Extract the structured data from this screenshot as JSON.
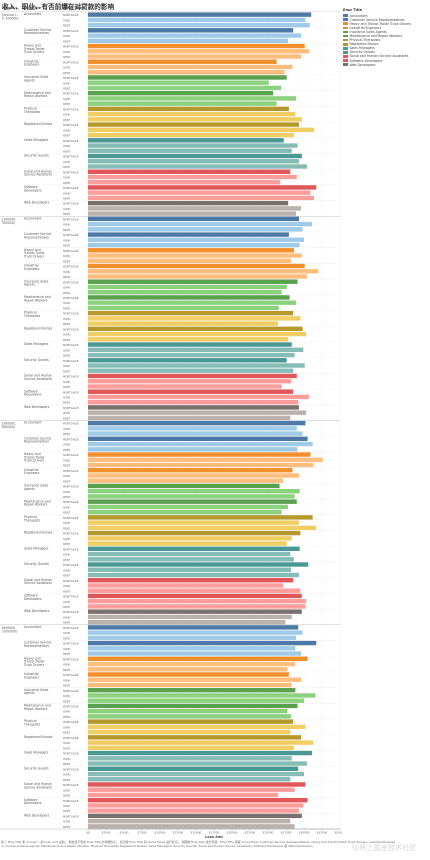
{
  "title": "收入、职业、有否前爆在对贷款的影响",
  "chart_data": {
    "type": "bar",
    "orientation": "horizontal",
    "column_headers": [
      "Annual I..",
      "Emp Title",
      "Home Owne"
    ],
    "xlabel": "Loan Amt",
    "xlim": [
      0,
      35000
    ],
    "x_ticks": [
      0,
      2500,
      5000,
      7500,
      10000,
      12500,
      15000,
      17500,
      20000,
      22500,
      25000,
      27500,
      30000,
      32500,
      35000
    ],
    "x_tick_labels": [
      "$0",
      "$2500",
      "$5000",
      "$7500",
      "$10000",
      "$12500",
      "$15000",
      "$17500",
      "$20000",
      "$22500",
      "$25000",
      "$27500",
      "$30000",
      "$32500",
      "$35000"
    ],
    "grid": true,
    "legend_title": "Emp Title",
    "legend_position": "top-right",
    "home_ownership_levels": [
      "MORTGAGE",
      "OWN",
      "RENT"
    ],
    "occupations": [
      {
        "name": "Accountant",
        "color": "#4e79a7",
        "light": "#a0cbe8"
      },
      {
        "name": "Customer Service Representatives",
        "color": "#4e79a7",
        "light": "#a0cbe8"
      },
      {
        "name": "Heavy and Tractor-Trailer Truck Drivers",
        "color": "#f28e2b",
        "light": "#ffbe7d"
      },
      {
        "name": "Industrial Engineers",
        "color": "#f28e2b",
        "light": "#ffbe7d"
      },
      {
        "name": "Insurance Sales Agents",
        "color": "#59a14f",
        "light": "#8cd17d"
      },
      {
        "name": "Maintenance and Repair Workers",
        "color": "#59a14f",
        "light": "#8cd17d"
      },
      {
        "name": "Physical Therapists",
        "color": "#b6992d",
        "light": "#f1ce63"
      },
      {
        "name": "Registered Nurses",
        "color": "#b6992d",
        "light": "#f1ce63"
      },
      {
        "name": "Sales Managers",
        "color": "#499894",
        "light": "#86bcb6"
      },
      {
        "name": "Security Guards",
        "color": "#499894",
        "light": "#86bcb6"
      },
      {
        "name": "Social and Human Service Assistants",
        "color": "#e15759",
        "light": "#ff9d9a"
      },
      {
        "name": "Software Developers",
        "color": "#e15759",
        "light": "#ff9d9a"
      },
      {
        "name": "Web Developers",
        "color": "#79706e",
        "light": "#bab0ac"
      }
    ],
    "income_groups": [
      {
        "label": "[Annual I.. < 100000)",
        "values": [
          [
            31000,
            30200,
            30800
          ],
          [
            28500,
            29600,
            27800
          ],
          [
            30100,
            30700,
            29600
          ],
          [
            26200,
            28400,
            27300
          ],
          [
            27600,
            25100,
            26800
          ],
          [
            25700,
            28900,
            26200
          ],
          [
            27900,
            28800,
            29700
          ],
          [
            29300,
            31400,
            28600
          ],
          [
            27200,
            29100,
            28300
          ],
          [
            29700,
            29300,
            30400
          ],
          [
            28100,
            29000,
            26700
          ],
          [
            31700,
            30900,
            31400
          ],
          [
            27800,
            29600,
            28900
          ]
        ]
      },
      {
        "label": "[100000, 300000)",
        "values": [
          [
            29300,
            31100,
            29800
          ],
          [
            27900,
            30000,
            29400
          ],
          [
            28600,
            29700,
            28200
          ],
          [
            30100,
            32000,
            30400
          ],
          [
            29100,
            27600,
            26900
          ],
          [
            28000,
            28900,
            26500
          ],
          [
            28500,
            29500,
            26400
          ],
          [
            29800,
            30300,
            27800
          ],
          [
            28300,
            29900,
            28700
          ],
          [
            27600,
            30100,
            28500
          ],
          [
            29000,
            28200,
            26900
          ],
          [
            28500,
            30700,
            29200
          ],
          [
            29300,
            30300,
            28100
          ]
        ]
      },
      {
        "label": "[300000, 600000)",
        "values": [
          [
            30200,
            29000,
            29800
          ],
          [
            30500,
            31200,
            29100
          ],
          [
            30900,
            32600,
            31300
          ],
          [
            28400,
            29300,
            27100
          ],
          [
            26600,
            29400,
            28700
          ],
          [
            29000,
            27800,
            26900
          ],
          [
            31200,
            29300,
            31700
          ],
          [
            29500,
            28300,
            27600
          ],
          [
            29400,
            28100,
            28600
          ],
          [
            30600,
            28200,
            29300
          ],
          [
            28500,
            27100,
            29500
          ],
          [
            29700,
            30300,
            30200
          ],
          [
            29700,
            28300,
            27400
          ]
        ]
      },
      {
        "label": "[600000, 1000000)",
        "values": [
          [
            29200,
            29800,
            28900
          ],
          [
            31700,
            28800,
            29600
          ],
          [
            30500,
            28800,
            27700
          ],
          [
            27900,
            29600,
            28300
          ],
          [
            28800,
            31600,
            30000
          ],
          [
            29100,
            27700,
            28200
          ],
          [
            28500,
            30200,
            28100
          ],
          [
            29600,
            31300,
            28600
          ],
          [
            31100,
            28300,
            30400
          ],
          [
            29200,
            30000,
            28100
          ],
          [
            30200,
            28700,
            26400
          ],
          [
            30500,
            29900,
            29300
          ],
          [
            29700,
            28100,
            28700
          ]
        ]
      }
    ]
  },
  "footnote": "各个 Emp Title 和 Annual I.. 的 Loan Amt 总和。 颜色显示有关 Emp Title 的详细信息。 标记按 Emp Title 和 Home Owne 进行标记。 视图按 Emp Title 进行筛选，Emp Title 保留 Accountant, Customer Service Representatives, Heavy and Tractor-Trailer Truck Drivers, Industrial Engineers, Insurance Sales Agents, Maintenance and Repair Workers, Physical Therapists, Registered Nurses, Sales Managers, Security Guards, Social and Human Service Assistants, Software Developers 和 Web Developers。",
  "watermark": "@稀土掘金技术社区"
}
